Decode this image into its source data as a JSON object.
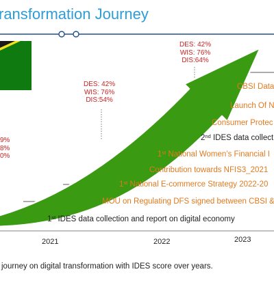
{
  "title": "ransformation Journey",
  "scores": {
    "s2023": {
      "des": "DES: 42%",
      "wis": "WIS: 76%",
      "dis": "DIS:64%"
    },
    "s2022": {
      "des": "DES: 42%",
      "wis": "WIS: 76%",
      "dis": "DIS:54%"
    },
    "s_left": {
      "l1": "9%",
      "l2": "8%",
      "l3": "0%"
    }
  },
  "events": [
    {
      "sup": "",
      "text": "CBSI Data",
      "color": "orange"
    },
    {
      "sup": "",
      "text": "Launch Of N",
      "color": "orange"
    },
    {
      "sup": "",
      "text": "Consumer Protec",
      "color": "orange"
    },
    {
      "pre": "2",
      "sup": "nd",
      "text": " IDES data collect",
      "color": "black"
    },
    {
      "pre": "1",
      "sup": "st",
      "text": " National Women’s Financial I",
      "color": "orange"
    },
    {
      "sup": "",
      "text": "Contribution towards NFIS3_2021",
      "color": "orange"
    },
    {
      "pre": "1",
      "sup": "st",
      "text": " National E-commerce Strategy 2022-20",
      "color": "orange"
    },
    {
      "sup": "",
      "text": "MOU on Regulating DFS signed between CBSI &",
      "color": "orange"
    },
    {
      "pre": "1",
      "sup": "st",
      "text": " IDES data collection and report on digital economy",
      "color": "black"
    }
  ],
  "years": [
    "2021",
    "2022",
    "2023"
  ],
  "caption": "journey on digital transformation with IDES score over years.",
  "colors": {
    "title": "#2e9dd6",
    "arrow": "#3a9a12",
    "orange": "#e07a1f",
    "score": "#cc2222",
    "line": "#1f4e8c"
  }
}
